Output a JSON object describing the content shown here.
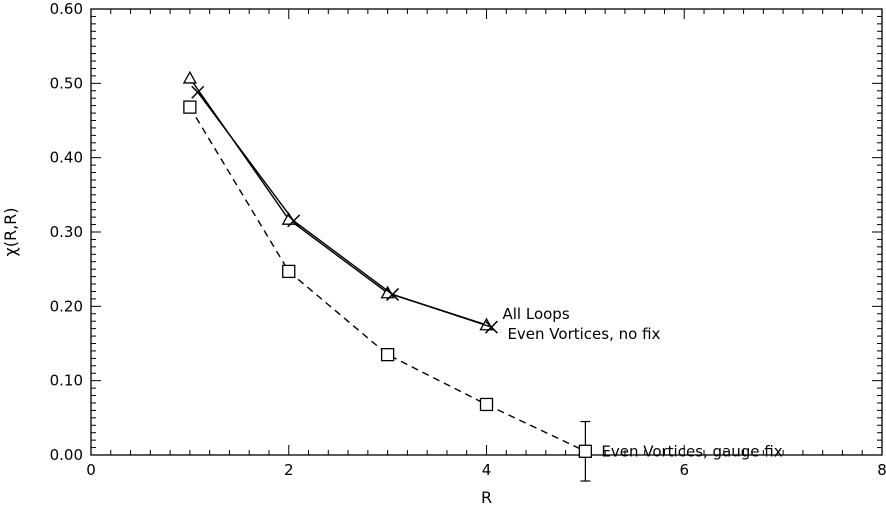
{
  "chart_data": {
    "type": "line",
    "title": "",
    "xlabel": "R",
    "ylabel": "χ(R,R)",
    "xlim": [
      0,
      8
    ],
    "ylim": [
      0,
      0.6
    ],
    "x_ticks": [
      "0",
      "2",
      "4",
      "6",
      "8"
    ],
    "y_ticks": [
      "0.00",
      "0.10",
      "0.20",
      "0.30",
      "0.40",
      "0.50",
      "0.60"
    ],
    "grid": false,
    "legend": "none",
    "series": [
      {
        "name": "All Loops",
        "marker": "triangle",
        "line": "solid",
        "x": [
          1.0,
          2.0,
          3.0,
          4.0
        ],
        "y": [
          0.507,
          0.317,
          0.218,
          0.175
        ]
      },
      {
        "name": "Even Vortices, no fix",
        "marker": "x",
        "line": "solid",
        "x": [
          1.08,
          2.05,
          3.05,
          4.05
        ],
        "y": [
          0.488,
          0.315,
          0.216,
          0.172
        ]
      },
      {
        "name": "Even Vortices, gauge fix",
        "marker": "square",
        "line": "dashed",
        "x": [
          1.0,
          2.0,
          3.0,
          4.0,
          5.0
        ],
        "y": [
          0.468,
          0.247,
          0.135,
          0.068,
          0.005
        ],
        "error": [
          0.003,
          0.003,
          0.003,
          0.003,
          0.04
        ]
      }
    ],
    "annotations": [
      {
        "text": "All Loops",
        "series": 0
      },
      {
        "text": "Even Vortices, no fix",
        "series": 1
      },
      {
        "text": "Even Vortices, gauge fix",
        "series": 2
      }
    ]
  }
}
